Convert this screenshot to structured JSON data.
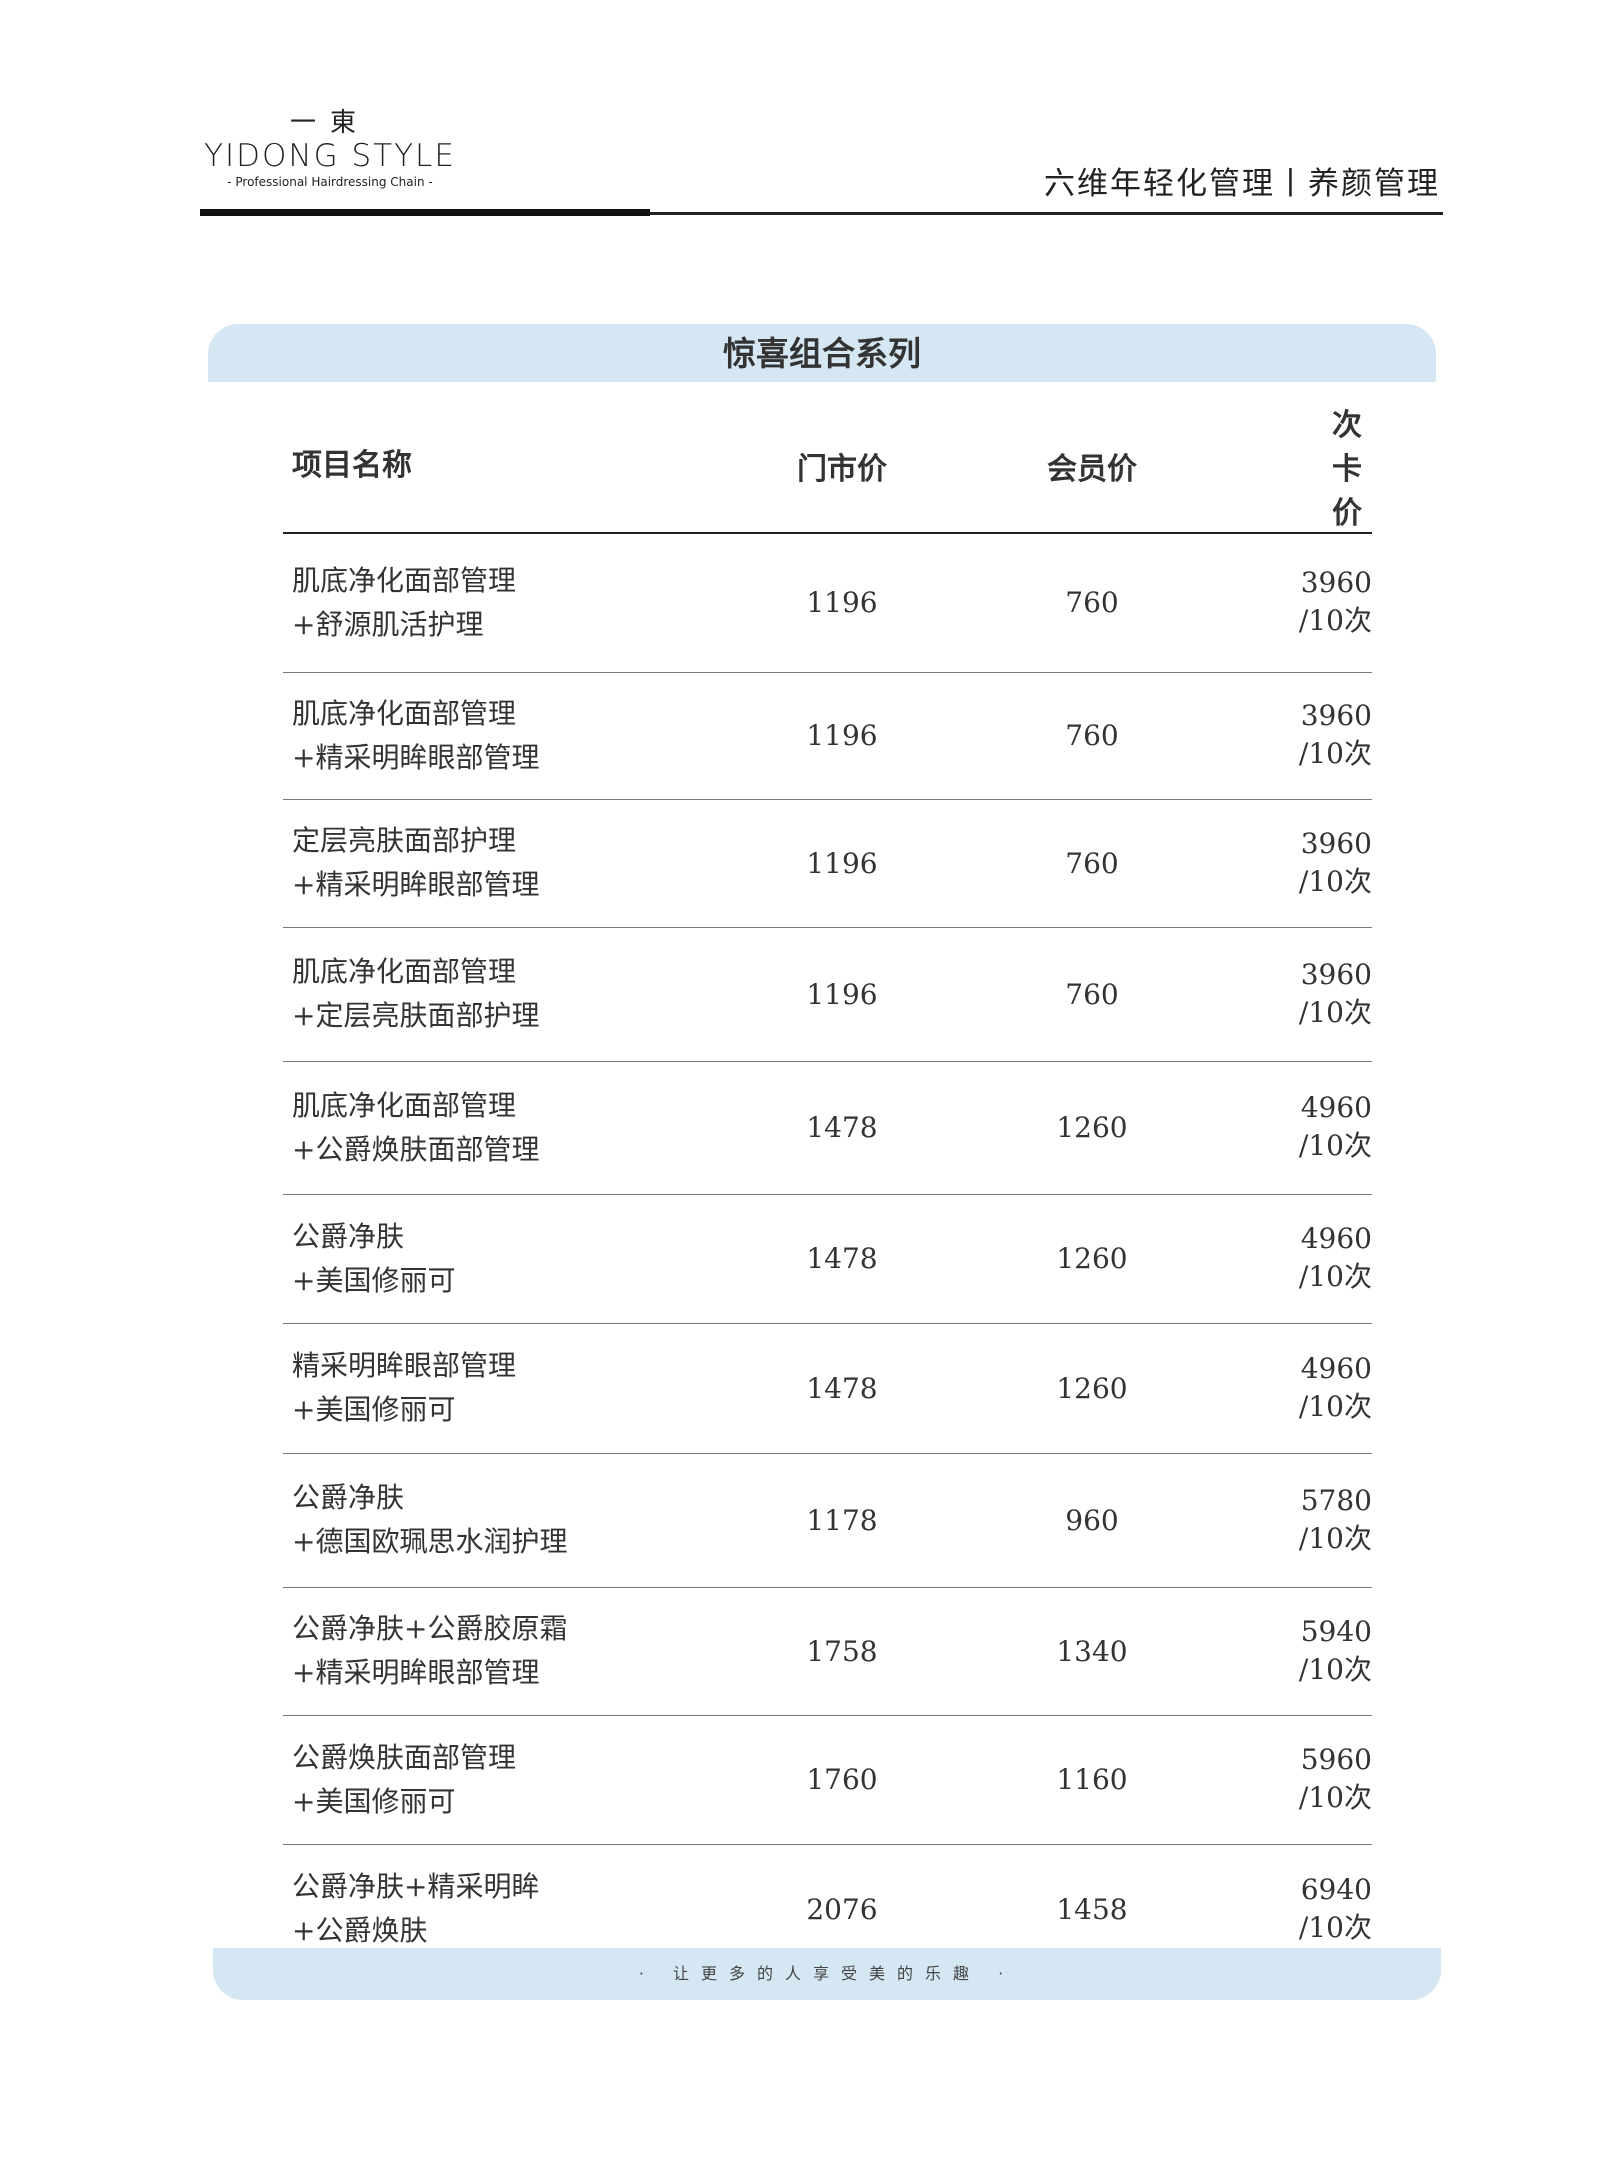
{
  "logo": {
    "cn": "一東",
    "en": "YIDONG STYLE",
    "sub": "- Professional Hairdressing Chain -"
  },
  "header": {
    "right": "六维年轻化管理丨养颜管理"
  },
  "section_title": "惊喜组合系列",
  "table": {
    "headers": [
      "项目名称",
      "门市价",
      "会员价",
      "次卡价"
    ],
    "rows": [
      {
        "line1": "肌底净化面部管理",
        "line2": "+舒源肌活护理",
        "retail": "1196",
        "member": "760",
        "card": "3960 /10次"
      },
      {
        "line1": "肌底净化面部管理",
        "line2": "+精采明眸眼部管理",
        "retail": "1196",
        "member": "760",
        "card": "3960 /10次"
      },
      {
        "line1": "定层亮肤面部护理",
        "line2": "+精采明眸眼部管理",
        "retail": "1196",
        "member": "760",
        "card": "3960 /10次"
      },
      {
        "line1": "肌底净化面部管理",
        "line2": "+定层亮肤面部护理",
        "retail": "1196",
        "member": "760",
        "card": "3960 /10次"
      },
      {
        "line1": "肌底净化面部管理",
        "line2": "+公爵焕肤面部管理",
        "retail": "1478",
        "member": "1260",
        "card": "4960 /10次"
      },
      {
        "line1": "公爵净肤",
        "line2": "+美国修丽可",
        "retail": "1478",
        "member": "1260",
        "card": "4960 /10次"
      },
      {
        "line1": "精采明眸眼部管理",
        "line2": "+美国修丽可",
        "retail": "1478",
        "member": "1260",
        "card": "4960 /10次"
      },
      {
        "line1": "公爵净肤",
        "line2": "+德国欧珮思水润护理",
        "retail": "1178",
        "member": "960",
        "card": "5780 /10次"
      },
      {
        "line1": "公爵净肤+公爵胶原霜",
        "line2": "+精采明眸眼部管理",
        "retail": "1758",
        "member": "1340",
        "card": "5940 /10次"
      },
      {
        "line1": "公爵焕肤面部管理",
        "line2": "+美国修丽可",
        "retail": "1760",
        "member": "1160",
        "card": "5960 /10次"
      },
      {
        "line1": "公爵净肤+精采明眸",
        "line2": "+公爵焕肤",
        "retail": "2076",
        "member": "1458",
        "card": "6940 /10次"
      }
    ]
  },
  "footer": {
    "slogan": "· 让更多的人享受美的乐趣 ·"
  },
  "colors": {
    "band": "#d6e7f4",
    "text": "#333333"
  }
}
